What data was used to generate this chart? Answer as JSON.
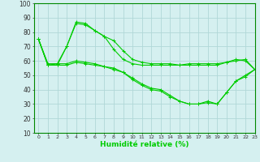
{
  "title": "",
  "xlabel": "Humidité relative (%)",
  "ylabel": "",
  "bg_color": "#d5f0f0",
  "grid_color": "#b0d8d8",
  "line_color": "#00cc00",
  "marker": "+",
  "xlim": [
    -0.5,
    23
  ],
  "ylim": [
    10,
    100
  ],
  "yticks": [
    10,
    20,
    30,
    40,
    50,
    60,
    70,
    80,
    90,
    100
  ],
  "xticks": [
    0,
    1,
    2,
    3,
    4,
    5,
    6,
    7,
    8,
    9,
    10,
    11,
    12,
    13,
    14,
    15,
    16,
    17,
    18,
    19,
    20,
    21,
    22,
    23
  ],
  "series": [
    [
      75,
      57,
      57,
      70,
      86,
      85,
      81,
      77,
      74,
      67,
      61,
      59,
      58,
      58,
      58,
      57,
      58,
      58,
      58,
      58,
      59,
      60,
      61,
      54
    ],
    [
      75,
      57,
      57,
      57,
      59,
      58,
      57,
      56,
      55,
      52,
      47,
      43,
      40,
      39,
      35,
      32,
      30,
      30,
      32,
      30,
      38,
      46,
      49,
      54
    ],
    [
      75,
      57,
      58,
      70,
      87,
      86,
      81,
      77,
      68,
      61,
      58,
      57,
      57,
      57,
      57,
      57,
      57,
      57,
      57,
      57,
      59,
      61,
      60,
      54
    ],
    [
      75,
      58,
      58,
      58,
      60,
      59,
      58,
      56,
      54,
      52,
      48,
      44,
      41,
      40,
      36,
      32,
      30,
      30,
      31,
      30,
      38,
      46,
      50,
      54
    ]
  ]
}
